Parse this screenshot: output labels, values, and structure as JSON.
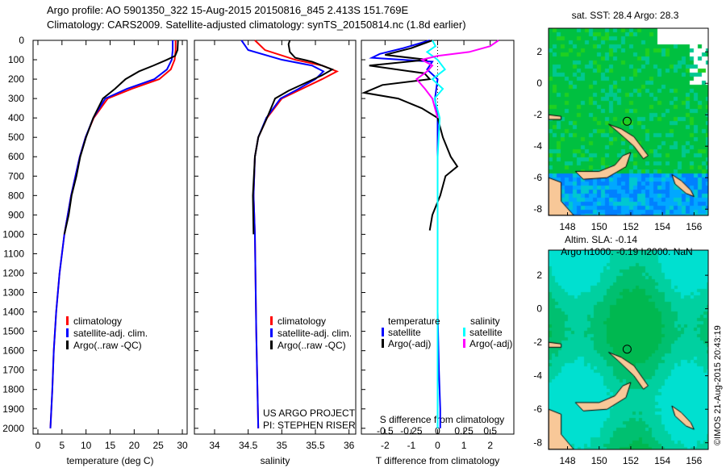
{
  "header": {
    "line1": "Argo profile: AO 5901350_322 15-Aug-2015 20150816_845 2.413S 151.769E",
    "line2": "Climatology: CARS2009. Satellite-adjusted climatology: synTS_20150814.nc (1.8d earlier)"
  },
  "colors": {
    "climatology": "#ff0000",
    "satellite": "#0000ff",
    "argo": "#000000",
    "sal_satellite": "#00ffff",
    "sal_argo": "#ff00ff",
    "land": "#f8c898"
  },
  "credit": "©IMOS 21-Aug-2015 20:43:19",
  "project": {
    "line1": "US ARGO PROJECT",
    "line2": "PI: STEPHEN RISER"
  },
  "chart_data": [
    {
      "type": "line",
      "name": "temperature",
      "xlabel": "temperature (deg C)",
      "ylabel": "depth",
      "xlim": [
        -1,
        31
      ],
      "ylim": [
        2050,
        0
      ],
      "xticks": [
        0,
        5,
        10,
        15,
        20,
        25,
        30
      ],
      "yticks": [
        0,
        100,
        200,
        300,
        400,
        500,
        600,
        700,
        800,
        900,
        1000,
        1100,
        1200,
        1300,
        1400,
        1500,
        1600,
        1700,
        1800,
        1900,
        2000
      ],
      "legend": [
        "climatology",
        "satellite-adj. clim.",
        "Argo(..raw -QC)"
      ],
      "series": [
        {
          "name": "climatology",
          "color": "#ff0000",
          "depth": [
            0,
            50,
            100,
            150,
            200,
            250,
            300,
            400,
            500,
            600,
            700,
            800,
            900,
            1000,
            1200,
            1400,
            1600,
            1800,
            2000
          ],
          "values": [
            28.6,
            28.6,
            28.4,
            27.6,
            25.2,
            19.5,
            14.5,
            11.6,
            9.9,
            8.7,
            7.8,
            6.9,
            6.2,
            5.5,
            4.5,
            3.8,
            3.3,
            3.0,
            2.6
          ]
        },
        {
          "name": "satellite-adj. clim.",
          "color": "#0000ff",
          "depth": [
            0,
            50,
            100,
            150,
            200,
            250,
            300,
            400,
            500,
            600,
            700,
            800,
            900,
            1000,
            1200,
            1400,
            1600,
            1800,
            2000
          ],
          "values": [
            28.0,
            28.0,
            27.8,
            26.8,
            24.2,
            18.5,
            14.0,
            11.5,
            9.9,
            8.7,
            7.8,
            6.9,
            6.2,
            5.5,
            4.5,
            3.8,
            3.3,
            3.0,
            2.6
          ]
        },
        {
          "name": "Argo(..raw -QC)",
          "color": "#000000",
          "depth": [
            0,
            50,
            80,
            100,
            130,
            160,
            200,
            250,
            300,
            400,
            500,
            600,
            700,
            800,
            900,
            1000
          ],
          "values": [
            29.1,
            29.0,
            28.5,
            26.8,
            24,
            21,
            18.2,
            16,
            13.5,
            11.5,
            10,
            8.8,
            8.0,
            7.0,
            6.4,
            5.5
          ]
        }
      ]
    },
    {
      "type": "line",
      "name": "salinity",
      "xlabel": "salinity",
      "ylabel": "depth",
      "xlim": [
        33.7,
        36.1
      ],
      "ylim": [
        2050,
        0
      ],
      "xticks": [
        34,
        34.5,
        35,
        35.5,
        36
      ],
      "legend": [
        "climatology",
        "satellite-adj. clim.",
        "Argo(..raw -QC)"
      ],
      "series": [
        {
          "name": "climatology",
          "color": "#ff0000",
          "depth": [
            0,
            50,
            100,
            130,
            160,
            200,
            250,
            300,
            400,
            500,
            600,
            800,
            1000,
            1500,
            2000
          ],
          "values": [
            34.6,
            34.75,
            35.2,
            35.6,
            35.82,
            35.6,
            35.3,
            35.0,
            34.78,
            34.65,
            34.6,
            34.58,
            34.6,
            34.62,
            34.65
          ]
        },
        {
          "name": "satellite-adj. clim.",
          "color": "#0000ff",
          "depth": [
            0,
            50,
            100,
            130,
            160,
            200,
            250,
            300,
            400,
            500,
            600,
            800,
            1000,
            1500,
            2000
          ],
          "values": [
            34.4,
            34.5,
            35.0,
            35.45,
            35.62,
            35.5,
            35.25,
            34.98,
            34.77,
            34.65,
            34.6,
            34.58,
            34.6,
            34.62,
            34.65
          ]
        },
        {
          "name": "Argo(..raw -QC)",
          "color": "#000000",
          "depth": [
            0,
            20,
            60,
            90,
            110,
            150,
            180,
            220,
            260,
            300,
            400,
            500,
            600,
            800,
            1000
          ],
          "values": [
            35.12,
            35.1,
            35.12,
            35.2,
            35.45,
            35.75,
            35.6,
            35.35,
            35.1,
            34.9,
            34.78,
            34.65,
            34.6,
            34.57,
            34.58
          ]
        }
      ]
    },
    {
      "type": "line",
      "name": "difference",
      "xlabel": "T difference from climatology",
      "x2label": "S difference from climatology",
      "xlim": [
        -2.9,
        2.9
      ],
      "x2lim": [
        -0.725,
        0.725
      ],
      "ylim": [
        2050,
        0
      ],
      "xticks": [
        -2,
        -1,
        0,
        1,
        2
      ],
      "x2ticks": [
        "-0.5",
        "-0.25",
        "0",
        "0.25",
        "0.5"
      ],
      "x2tick_values": [
        -0.5,
        -0.25,
        0,
        0.25,
        0.5
      ],
      "legend": {
        "temperature": "temperature",
        "salinity": "salinity",
        "items": [
          "satellite",
          "Argo(-adj)",
          "satellite",
          "Argo(-adj)"
        ]
      },
      "series": [
        {
          "name": "temperature satellite",
          "color": "#0000ff",
          "axis": "T",
          "depth": [
            0,
            40,
            70,
            90,
            110,
            150,
            200,
            300,
            400,
            600,
            1000,
            1400,
            1700,
            1900,
            2000
          ],
          "values": [
            -0.3,
            -1.3,
            -2.2,
            -2.5,
            -0.2,
            -0.4,
            0.0,
            -0.1,
            0.0,
            0.0,
            0.0,
            0.0,
            0.05,
            0.1,
            0.1
          ]
        },
        {
          "name": "temperature Argo(-adj)",
          "color": "#000000",
          "axis": "T",
          "depth": [
            0,
            40,
            75,
            100,
            130,
            170,
            200,
            230,
            270,
            300,
            350,
            400,
            500,
            600,
            650,
            700,
            800,
            900,
            980
          ],
          "values": [
            -0.2,
            -1.0,
            -2.0,
            -0.4,
            -2.6,
            -0.5,
            -0.3,
            -2.1,
            -2.8,
            -1.5,
            -0.6,
            0.0,
            0.2,
            0.5,
            0.75,
            0.3,
            0.1,
            -0.2,
            -0.3
          ]
        },
        {
          "name": "salinity satellite",
          "color": "#00ffff",
          "axis": "S",
          "depth": [
            0,
            30,
            60,
            100,
            150,
            200,
            250,
            300,
            400,
            600,
            1000,
            1500,
            2000
          ],
          "values": [
            -0.05,
            -0.02,
            -0.1,
            0.0,
            0.07,
            -0.05,
            0.05,
            -0.03,
            0.02,
            0.0,
            0.0,
            0.0,
            0.0
          ]
        },
        {
          "name": "salinity Argo(-adj)",
          "color": "#ff00ff",
          "axis": "S",
          "depth": [
            0,
            30,
            60,
            80,
            100,
            130,
            160,
            200,
            250,
            300,
            400
          ],
          "values": [
            0.58,
            0.5,
            0.3,
            0.0,
            -0.15,
            -0.05,
            -0.1,
            -0.2,
            -0.12,
            -0.05,
            0.0
          ]
        }
      ]
    },
    {
      "type": "heatmap",
      "name": "sst-map",
      "title": "sat. SST: 28.4 Argo: 28.3",
      "xlim": [
        146.8,
        156.9
      ],
      "ylim": [
        -8.4,
        3.5
      ],
      "xticks": [
        148,
        150,
        152,
        154,
        156
      ],
      "yticks": [
        2,
        0,
        -2,
        -4,
        -6,
        -8
      ],
      "argo_position": {
        "lon": 151.769,
        "lat": -2.413
      }
    },
    {
      "type": "heatmap",
      "name": "sla-map",
      "title": "Altim. SLA: -0.14",
      "subtitle": "Argo h1000: -0.19 h2000: NaN",
      "xlim": [
        146.8,
        156.9
      ],
      "ylim": [
        -8.4,
        3.5
      ],
      "xticks": [
        148,
        150,
        152,
        154,
        156
      ],
      "yticks": [
        2,
        0,
        -2,
        -4,
        -6,
        -8
      ],
      "argo_position": {
        "lon": 151.769,
        "lat": -2.413
      }
    }
  ]
}
